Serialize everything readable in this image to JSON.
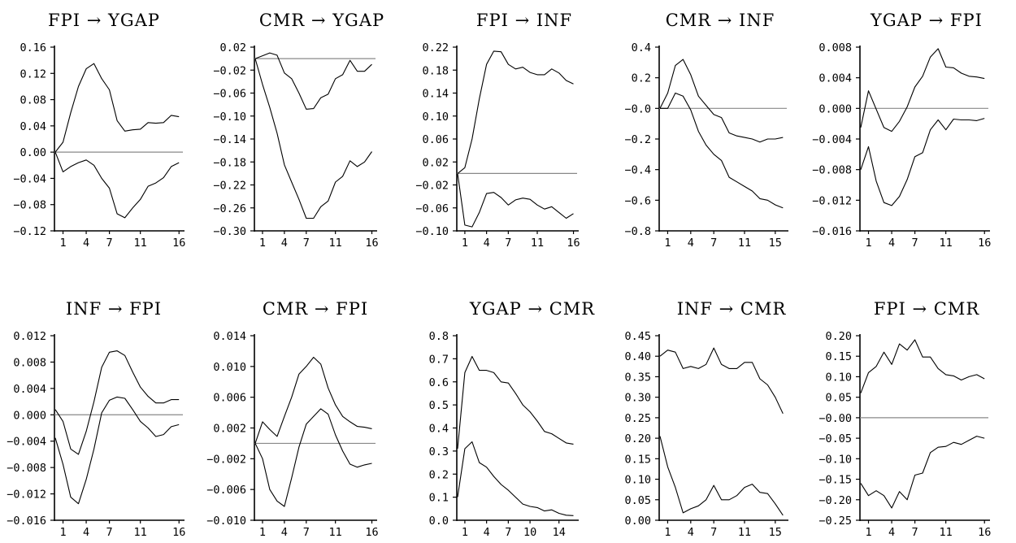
{
  "chart_data": [
    {
      "type": "line",
      "title": "FPI → YGAP",
      "yticks": [
        "0.16",
        "0.12",
        "0.08",
        "0.04",
        "0.00",
        "−0.04",
        "−0.08",
        "−0.12"
      ],
      "ylim": [
        -0.12,
        0.16
      ],
      "xticks": [
        {
          "v": 1,
          "label": "1"
        },
        {
          "v": 4,
          "label": "4"
        },
        {
          "v": 7,
          "label": "7"
        },
        {
          "v": 11,
          "label": "11"
        },
        {
          "v": 16,
          "label": "16"
        }
      ],
      "xlim": [
        0,
        16.5
      ],
      "zero_line": 0,
      "series": [
        {
          "values": [
            0.0,
            0.015,
            0.06,
            0.1,
            0.127,
            0.135,
            0.112,
            0.095,
            0.048,
            0.032,
            0.034,
            0.035,
            0.045,
            0.044,
            0.045,
            0.056,
            0.054
          ]
        },
        {
          "values": [
            0.0,
            -0.03,
            -0.022,
            -0.016,
            -0.012,
            -0.02,
            -0.04,
            -0.055,
            -0.094,
            -0.1,
            -0.085,
            -0.072,
            -0.052,
            -0.047,
            -0.039,
            -0.022,
            -0.016
          ]
        }
      ]
    },
    {
      "type": "line",
      "title": "CMR → YGAP",
      "yticks": [
        "0.02",
        "−0.02",
        "−0.06",
        "−0.10",
        "−0.14",
        "−0.18",
        "−0.22",
        "−0.26",
        "−0.30"
      ],
      "ylim": [
        -0.3,
        0.02
      ],
      "xticks": [
        {
          "v": 1,
          "label": "1"
        },
        {
          "v": 4,
          "label": "4"
        },
        {
          "v": 7,
          "label": "7"
        },
        {
          "v": 11,
          "label": "11"
        },
        {
          "v": 16,
          "label": "16"
        }
      ],
      "xlim": [
        0,
        16.5
      ],
      "zero_line": 0,
      "series": [
        {
          "values": [
            0.0,
            0.005,
            0.01,
            0.006,
            -0.025,
            -0.035,
            -0.06,
            -0.088,
            -0.087,
            -0.068,
            -0.062,
            -0.035,
            -0.028,
            -0.003,
            -0.022,
            -0.022,
            -0.01
          ]
        },
        {
          "values": [
            0.0,
            -0.045,
            -0.085,
            -0.13,
            -0.185,
            -0.215,
            -0.245,
            -0.278,
            -0.278,
            -0.258,
            -0.248,
            -0.215,
            -0.205,
            -0.178,
            -0.188,
            -0.18,
            -0.162
          ]
        }
      ]
    },
    {
      "type": "line",
      "title": "FPI → INF",
      "yticks": [
        "0.22",
        "0.18",
        "0.14",
        "0.10",
        "0.06",
        "0.02",
        "−0.02",
        "−0.06",
        "−0.10"
      ],
      "ylim": [
        -0.1,
        0.22
      ],
      "xticks": [
        {
          "v": 1,
          "label": "1"
        },
        {
          "v": 4,
          "label": "4"
        },
        {
          "v": 7,
          "label": "7"
        },
        {
          "v": 11,
          "label": "11"
        },
        {
          "v": 16,
          "label": "16"
        }
      ],
      "xlim": [
        0,
        16.5
      ],
      "zero_line": 0,
      "series": [
        {
          "values": [
            0.0,
            0.01,
            0.06,
            0.13,
            0.19,
            0.213,
            0.212,
            0.19,
            0.182,
            0.185,
            0.176,
            0.172,
            0.172,
            0.182,
            0.175,
            0.162,
            0.156
          ]
        },
        {
          "values": [
            0.0,
            -0.09,
            -0.093,
            -0.068,
            -0.035,
            -0.033,
            -0.042,
            -0.055,
            -0.046,
            -0.043,
            -0.045,
            -0.055,
            -0.062,
            -0.058,
            -0.068,
            -0.078,
            -0.07
          ]
        }
      ]
    },
    {
      "type": "line",
      "title": "CMR → INF",
      "yticks": [
        "0.4",
        "0.2",
        "−0.0",
        "−0.2",
        "−0.4",
        "−0.6",
        "−0.8"
      ],
      "ylim": [
        -0.8,
        0.4
      ],
      "xticks": [
        {
          "v": 1,
          "label": "1"
        },
        {
          "v": 4,
          "label": "4"
        },
        {
          "v": 7,
          "label": "7"
        },
        {
          "v": 11,
          "label": "11"
        },
        {
          "v": 15,
          "label": "15"
        }
      ],
      "xlim": [
        0,
        16.5
      ],
      "zero_line": 0,
      "series": [
        {
          "values": [
            0.0,
            0.1,
            0.28,
            0.32,
            0.22,
            0.08,
            0.02,
            -0.04,
            -0.06,
            -0.16,
            -0.18,
            -0.19,
            -0.2,
            -0.22,
            -0.2,
            -0.2,
            -0.19
          ]
        },
        {
          "values": [
            0.0,
            0.0,
            0.1,
            0.08,
            -0.01,
            -0.15,
            -0.24,
            -0.3,
            -0.34,
            -0.45,
            -0.48,
            -0.51,
            -0.54,
            -0.59,
            -0.6,
            -0.63,
            -0.65
          ]
        }
      ]
    },
    {
      "type": "line",
      "title": "YGAP → FPI",
      "yticks": [
        "0.008",
        "0.004",
        "0.000",
        "−0.004",
        "−0.008",
        "−0.012",
        "−0.016"
      ],
      "ylim": [
        -0.016,
        0.008
      ],
      "xticks": [
        {
          "v": 1,
          "label": "1"
        },
        {
          "v": 4,
          "label": "4"
        },
        {
          "v": 7,
          "label": "7"
        },
        {
          "v": 11,
          "label": "11"
        },
        {
          "v": 16,
          "label": "16"
        }
      ],
      "xlim": [
        0,
        16.5
      ],
      "zero_line": 0,
      "series": [
        {
          "values": [
            -0.0025,
            0.0023,
            -0.0001,
            -0.0025,
            -0.003,
            -0.0017,
            0.0002,
            0.0028,
            0.0042,
            0.0067,
            0.0078,
            0.0054,
            0.0053,
            0.0046,
            0.0042,
            0.0041,
            0.0039
          ]
        },
        {
          "values": [
            -0.008,
            -0.005,
            -0.0095,
            -0.0123,
            -0.0127,
            -0.0115,
            -0.0093,
            -0.0063,
            -0.0058,
            -0.0028,
            -0.0015,
            -0.0028,
            -0.0014,
            -0.0015,
            -0.0015,
            -0.0016,
            -0.0013
          ]
        }
      ]
    },
    {
      "type": "line",
      "title": "INF → FPI",
      "yticks": [
        "0.012",
        "0.008",
        "0.004",
        "0.000",
        "−0.004",
        "−0.008",
        "−0.012",
        "−0.016"
      ],
      "ylim": [
        -0.016,
        0.012
      ],
      "xticks": [
        {
          "v": 1,
          "label": "1"
        },
        {
          "v": 4,
          "label": "4"
        },
        {
          "v": 7,
          "label": "7"
        },
        {
          "v": 11,
          "label": "11"
        },
        {
          "v": 16,
          "label": "16"
        }
      ],
      "xlim": [
        0,
        16.5
      ],
      "zero_line": 0,
      "series": [
        {
          "values": [
            0.0008,
            -0.001,
            -0.0052,
            -0.006,
            -0.0025,
            0.002,
            0.0072,
            0.0095,
            0.0097,
            0.009,
            0.0065,
            0.0042,
            0.0028,
            0.0018,
            0.0018,
            0.0023,
            0.0023
          ]
        },
        {
          "values": [
            -0.0035,
            -0.0075,
            -0.0125,
            -0.0135,
            -0.0098,
            -0.0052,
            0.0003,
            0.0022,
            0.0027,
            0.0025,
            0.0008,
            -0.001,
            -0.002,
            -0.0033,
            -0.003,
            -0.0018,
            -0.0015
          ]
        }
      ]
    },
    {
      "type": "line",
      "title": "CMR → FPI",
      "yticks": [
        "0.014",
        "0.010",
        "0.006",
        "0.002",
        "−0.002",
        "−0.006",
        "−0.010"
      ],
      "ylim": [
        -0.01,
        0.014
      ],
      "xticks": [
        {
          "v": 1,
          "label": "1"
        },
        {
          "v": 4,
          "label": "4"
        },
        {
          "v": 7,
          "label": "7"
        },
        {
          "v": 11,
          "label": "11"
        },
        {
          "v": 16,
          "label": "16"
        }
      ],
      "xlim": [
        0,
        16.5
      ],
      "zero_line": 0,
      "series": [
        {
          "values": [
            0.0,
            0.0028,
            0.0018,
            0.0009,
            0.0035,
            0.006,
            0.009,
            0.01,
            0.0112,
            0.0103,
            0.0072,
            0.005,
            0.0035,
            0.0028,
            0.0022,
            0.0021,
            0.0019
          ]
        },
        {
          "values": [
            0.0,
            -0.002,
            -0.006,
            -0.0075,
            -0.0082,
            -0.0045,
            -0.0005,
            0.0025,
            0.0035,
            0.0045,
            0.0038,
            0.0011,
            -0.001,
            -0.0027,
            -0.0031,
            -0.0028,
            -0.0026
          ]
        }
      ]
    },
    {
      "type": "line",
      "title": "YGAP → CMR",
      "yticks": [
        "0.8",
        "0.7",
        "0.6",
        "0.5",
        "0.4",
        "0.3",
        "0.2",
        "0.1",
        "0.0"
      ],
      "ylim": [
        0,
        0.8
      ],
      "xticks": [
        {
          "v": 1,
          "label": "1"
        },
        {
          "v": 4,
          "label": "4"
        },
        {
          "v": 7,
          "label": "7"
        },
        {
          "v": 10,
          "label": "10"
        },
        {
          "v": 14,
          "label": "14"
        }
      ],
      "xlim": [
        0,
        16.5
      ],
      "zero_line": null,
      "series": [
        {
          "values": [
            0.31,
            0.64,
            0.71,
            0.65,
            0.65,
            0.64,
            0.6,
            0.595,
            0.55,
            0.5,
            0.47,
            0.43,
            0.385,
            0.375,
            0.355,
            0.335,
            0.33
          ]
        },
        {
          "values": [
            0.1,
            0.31,
            0.34,
            0.25,
            0.23,
            0.19,
            0.155,
            0.13,
            0.1,
            0.07,
            0.06,
            0.055,
            0.04,
            0.045,
            0.03,
            0.022,
            0.02
          ]
        }
      ]
    },
    {
      "type": "line",
      "title": "INF → CMR",
      "yticks": [
        "0.45",
        "0.40",
        "0.35",
        "0.30",
        "0.25",
        "0.20",
        "0.15",
        "0.10",
        "0.05",
        "0.00"
      ],
      "ylim": [
        0,
        0.45
      ],
      "xticks": [
        {
          "v": 1,
          "label": "1"
        },
        {
          "v": 4,
          "label": "4"
        },
        {
          "v": 7,
          "label": "7"
        },
        {
          "v": 11,
          "label": "11"
        },
        {
          "v": 15,
          "label": "15"
        }
      ],
      "xlim": [
        0,
        16.5
      ],
      "zero_line": null,
      "series": [
        {
          "values": [
            0.4,
            0.415,
            0.41,
            0.37,
            0.375,
            0.37,
            0.38,
            0.42,
            0.38,
            0.37,
            0.37,
            0.385,
            0.385,
            0.345,
            0.33,
            0.3,
            0.26
          ]
        },
        {
          "values": [
            0.205,
            0.13,
            0.08,
            0.018,
            0.028,
            0.035,
            0.05,
            0.085,
            0.05,
            0.05,
            0.06,
            0.08,
            0.088,
            0.068,
            0.065,
            0.04,
            0.012
          ]
        }
      ]
    },
    {
      "type": "line",
      "title": "FPI → CMR",
      "yticks": [
        "0.20",
        "0.15",
        "0.10",
        "0.05",
        "−0.00",
        "−0.05",
        "−0.10",
        "−0.15",
        "−0.20",
        "−0.25"
      ],
      "ylim": [
        -0.25,
        0.2
      ],
      "xticks": [
        {
          "v": 1,
          "label": "1"
        },
        {
          "v": 4,
          "label": "4"
        },
        {
          "v": 7,
          "label": "7"
        },
        {
          "v": 11,
          "label": "11"
        },
        {
          "v": 16,
          "label": "16"
        }
      ],
      "xlim": [
        0,
        16.5
      ],
      "zero_line": 0,
      "series": [
        {
          "values": [
            0.06,
            0.11,
            0.125,
            0.16,
            0.13,
            0.18,
            0.165,
            0.19,
            0.148,
            0.148,
            0.12,
            0.105,
            0.102,
            0.092,
            0.1,
            0.105,
            0.095
          ]
        },
        {
          "values": [
            -0.16,
            -0.19,
            -0.178,
            -0.19,
            -0.22,
            -0.18,
            -0.2,
            -0.14,
            -0.135,
            -0.085,
            -0.072,
            -0.07,
            -0.06,
            -0.065,
            -0.055,
            -0.045,
            -0.05
          ]
        }
      ]
    }
  ]
}
